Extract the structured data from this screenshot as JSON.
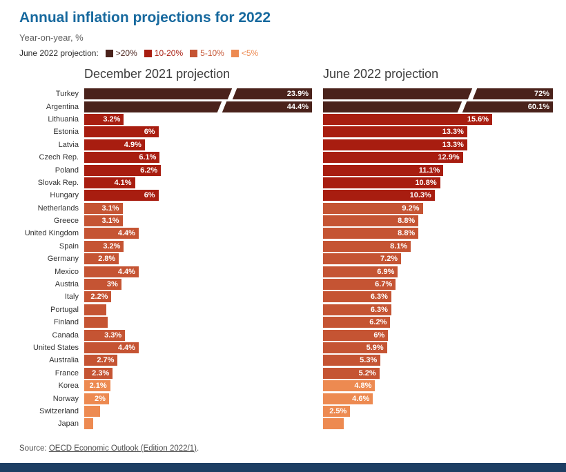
{
  "header": {
    "title": "Annual inflation projections for 2022",
    "subtitle": "Year-on-year, %",
    "legend_label": "June 2022 projection:"
  },
  "panels": {
    "left_title": "December 2021 projection",
    "right_title": "June 2022 projection"
  },
  "chart_data": {
    "type": "bar",
    "orientation": "horizontal",
    "title": "Annual inflation projections for 2022",
    "subtitle": "Year-on-year, %",
    "categories": [
      "Turkey",
      "Argentina",
      "Lithuania",
      "Estonia",
      "Latvia",
      "Czech Rep.",
      "Poland",
      "Slovak Rep.",
      "Hungary",
      "Netherlands",
      "Greece",
      "United Kingdom",
      "Spain",
      "Germany",
      "Mexico",
      "Austria",
      "Italy",
      "Portugal",
      "Finland",
      "Canada",
      "United States",
      "Australia",
      "France",
      "Korea",
      "Norway",
      "Switzerland",
      "Japan"
    ],
    "series": [
      {
        "name": "December 2021 projection",
        "values": [
          23.9,
          44.4,
          3.2,
          6,
          4.9,
          6.1,
          6.2,
          4.1,
          6,
          3.1,
          3.1,
          4.4,
          3.2,
          2.8,
          4.4,
          3,
          2.2,
          1.8,
          1.9,
          3.3,
          4.4,
          2.7,
          2.3,
          2.1,
          2,
          1.3,
          0.7
        ],
        "labels": [
          "23.9%",
          "44.4%",
          "3.2%",
          "6%",
          "4.9%",
          "6.1%",
          "6.2%",
          "4.1%",
          "6%",
          "3.1%",
          "3.1%",
          "4.4%",
          "3.2%",
          "2.8%",
          "4.4%",
          "3%",
          "2.2%",
          "",
          "",
          "3.3%",
          "4.4%",
          "2.7%",
          "2.3%",
          "2.1%",
          "2%",
          "",
          ""
        ],
        "axis_max": 18.4
      },
      {
        "name": "June 2022 projection",
        "values": [
          72,
          60.1,
          15.6,
          13.3,
          13.3,
          12.9,
          11.1,
          10.8,
          10.3,
          9.2,
          8.8,
          8.8,
          8.1,
          7.2,
          6.9,
          6.7,
          6.3,
          6.3,
          6.2,
          6,
          5.9,
          5.3,
          5.2,
          4.8,
          4.6,
          2.5,
          1.9
        ],
        "labels": [
          "72%",
          "60.1%",
          "15.6%",
          "13.3%",
          "13.3%",
          "12.9%",
          "11.1%",
          "10.8%",
          "10.3%",
          "9.2%",
          "8.8%",
          "8.8%",
          "8.1%",
          "7.2%",
          "6.9%",
          "6.7%",
          "6.3%",
          "6.3%",
          "6.2%",
          "6%",
          "5.9%",
          "5.3%",
          "5.2%",
          "4.8%",
          "4.6%",
          "2.5%",
          ""
        ],
        "axis_max": 21.2
      }
    ],
    "bin_by_country": [
      ">20%",
      ">20%",
      "10-20%",
      "10-20%",
      "10-20%",
      "10-20%",
      "10-20%",
      "10-20%",
      "10-20%",
      "5-10%",
      "5-10%",
      "5-10%",
      "5-10%",
      "5-10%",
      "5-10%",
      "5-10%",
      "5-10%",
      "5-10%",
      "5-10%",
      "5-10%",
      "5-10%",
      "5-10%",
      "5-10%",
      "<5%",
      "<5%",
      "<5%",
      "<5%"
    ],
    "color_bins": [
      {
        "label": ">20%",
        "color": "#4a221b"
      },
      {
        "label": "10-20%",
        "color": "#a81d10"
      },
      {
        "label": "5-10%",
        "color": "#c55433"
      },
      {
        "label": "<5%",
        "color": "#ed8a51"
      }
    ],
    "truncated_categories": [
      "Turkey",
      "Argentina"
    ],
    "layout": {
      "grid": false,
      "value_labels": "inside-end",
      "legend_position": "top",
      "truncation_break_marks": true
    }
  },
  "source": {
    "prefix": "Source: ",
    "link_text": "OECD Economic Outlook (Edition 2022/1)",
    "suffix": "."
  },
  "colors": {
    "title": "#17699e",
    "footer_bar": "#1d3e63"
  }
}
